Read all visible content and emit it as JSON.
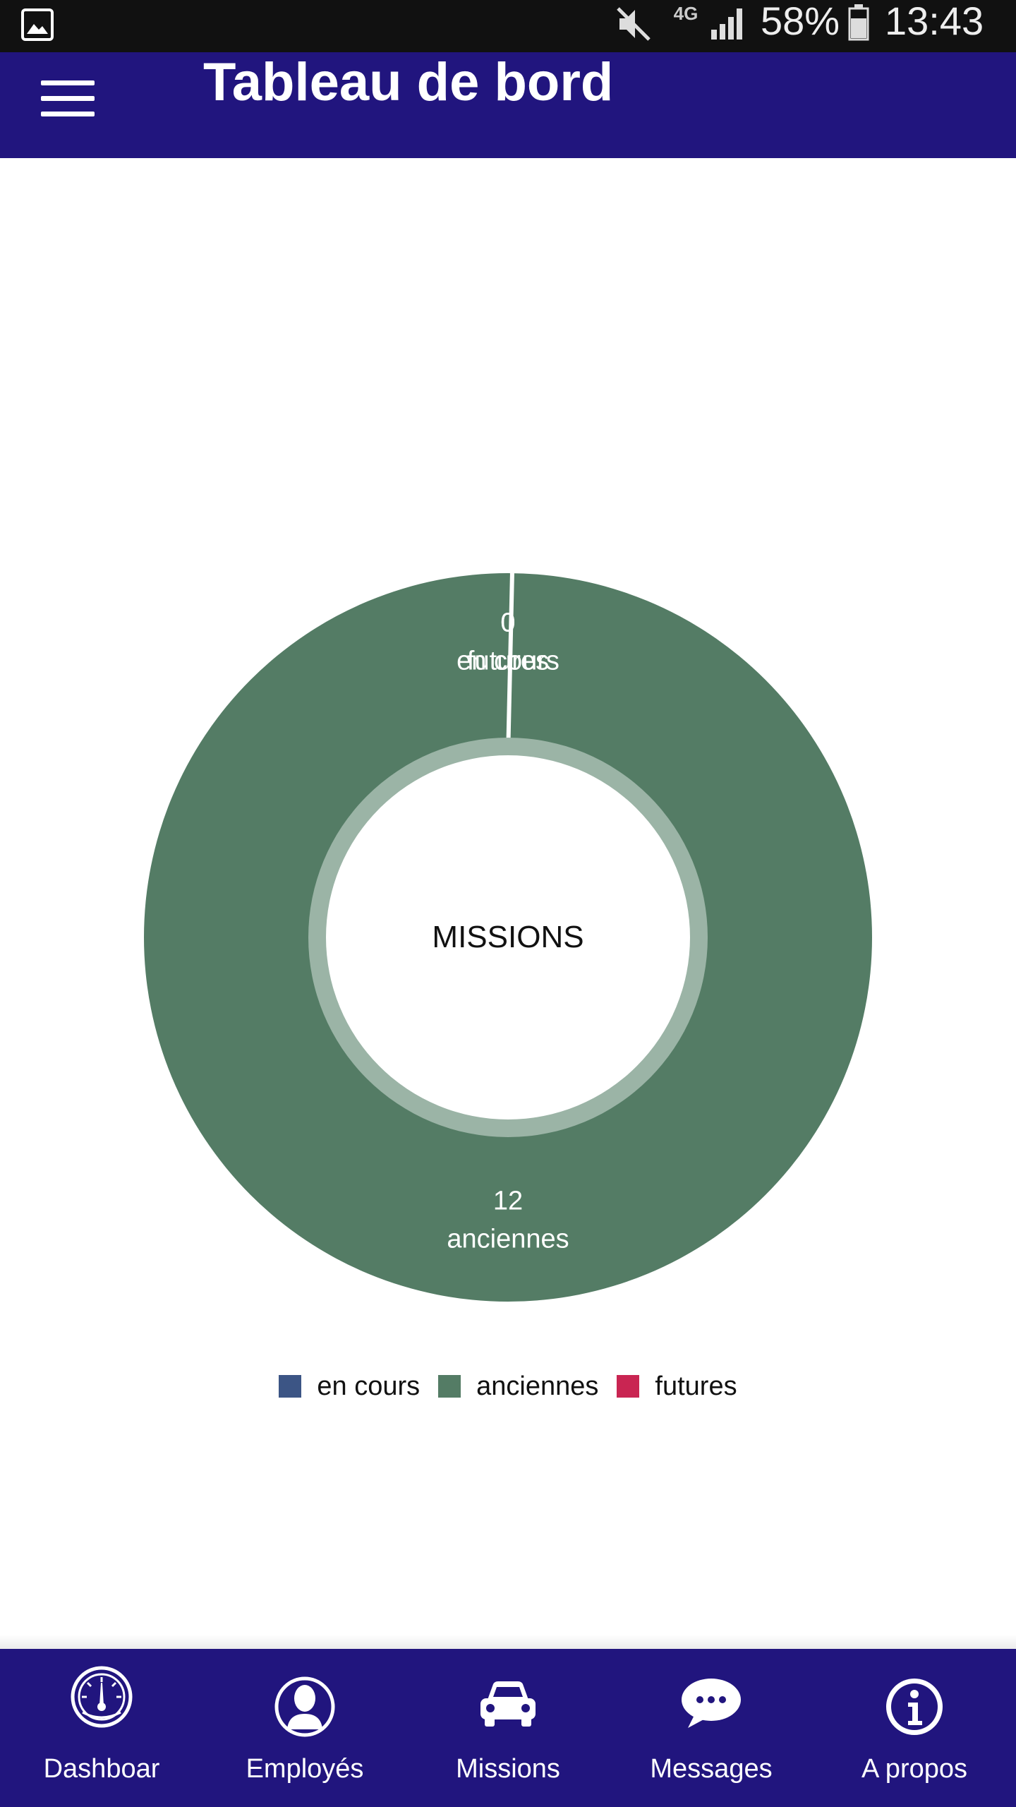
{
  "status_bar": {
    "network_type": "4G",
    "battery": "58%",
    "time": "13:43",
    "icons": [
      "gallery-icon",
      "mute-icon",
      "signal-icon",
      "battery-icon"
    ]
  },
  "app_bar": {
    "title": "Tableau de bord",
    "menu_icon": "hamburger-menu-icon"
  },
  "chart_data": {
    "type": "pie",
    "variant": "donut",
    "center_label": "MISSIONS",
    "categories": [
      "en cours",
      "anciennes",
      "futures"
    ],
    "values": [
      0,
      12,
      0
    ],
    "colors": [
      "#3c5585",
      "#547c65",
      "#c92552"
    ],
    "data_labels": [
      {
        "value": "0",
        "label": "en cours"
      },
      {
        "value": "12",
        "label": "anciennes"
      },
      {
        "value": "0",
        "label": "futures"
      }
    ],
    "legend_position": "bottom-center"
  },
  "bottom_nav": {
    "items": [
      {
        "label": "Dashboar",
        "icon": "dashboard-gauge-icon"
      },
      {
        "label": "Employés",
        "icon": "user-icon"
      },
      {
        "label": "Missions",
        "icon": "car-icon"
      },
      {
        "label": "Messages",
        "icon": "chat-bubble-icon"
      },
      {
        "label": "A propos",
        "icon": "info-icon"
      }
    ]
  },
  "colors": {
    "primary": "#21157e",
    "status_bar": "#111111",
    "inner_ring": "#9bb4a6"
  }
}
